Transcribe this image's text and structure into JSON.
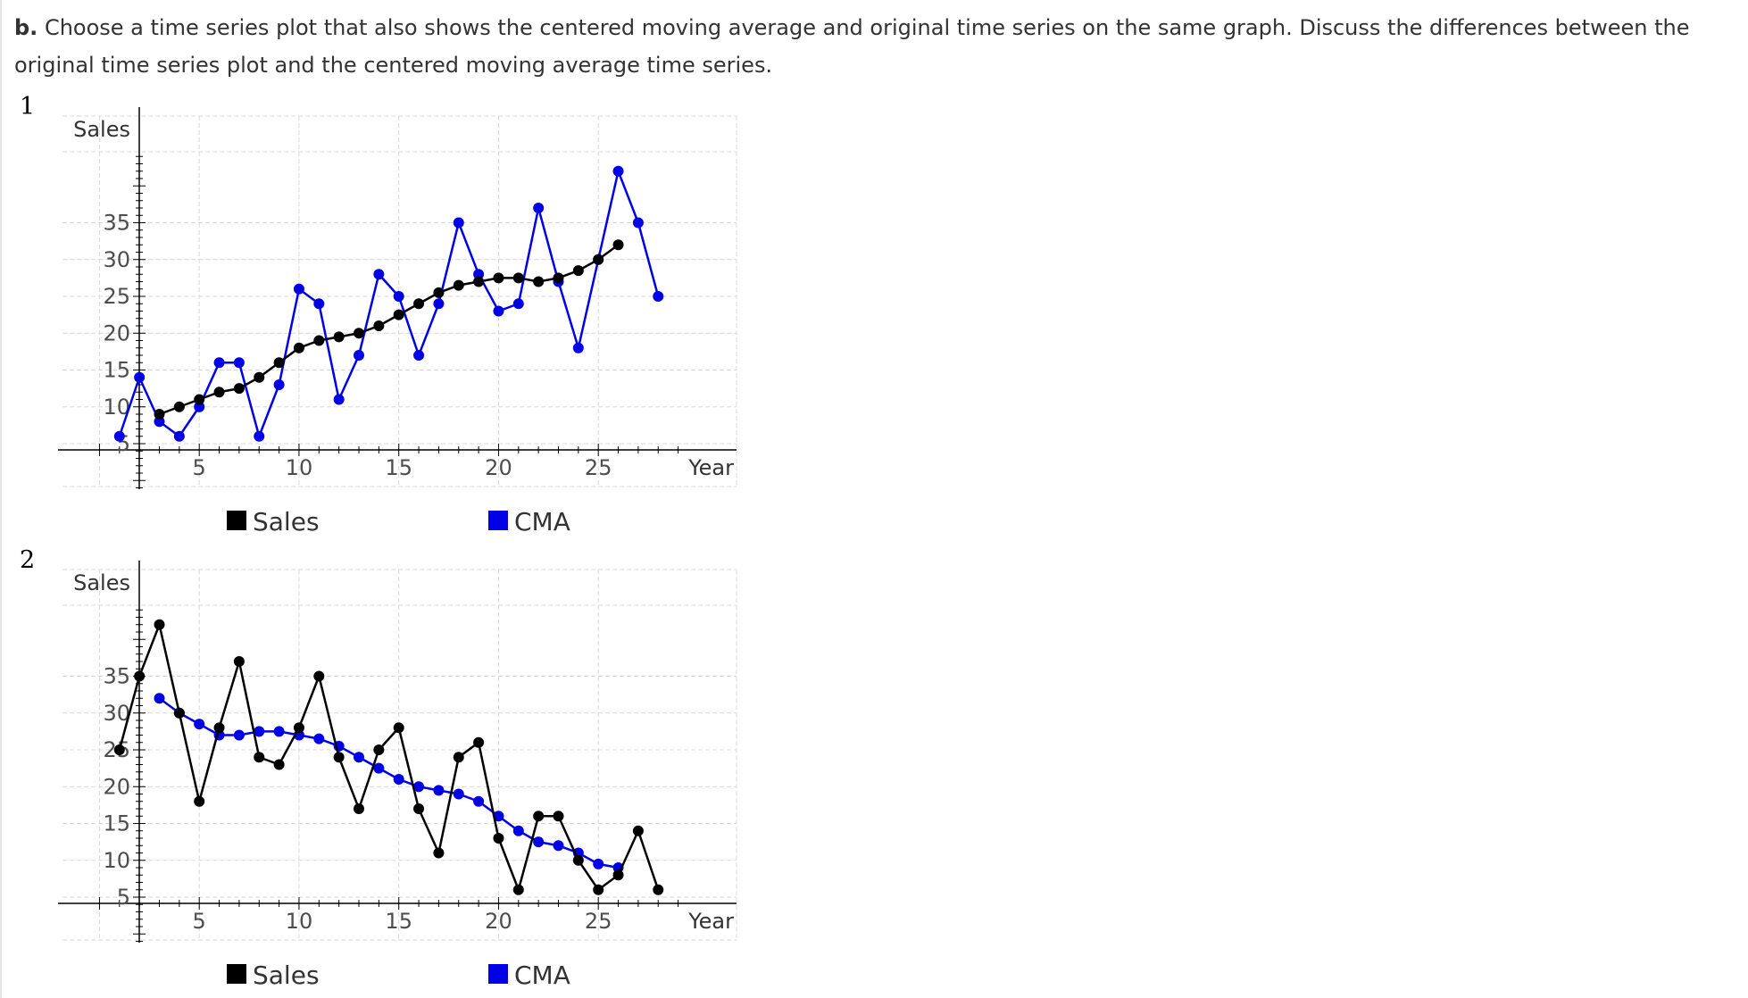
{
  "question": {
    "part_label": "b.",
    "text": "Choose a time series plot that also shows the centered moving average and original time series on the same graph. Discuss the differences between the original time series plot and the centered moving average time series."
  },
  "colors": {
    "sales_black": "#000000",
    "cma_blue": "#0000e6",
    "grid": "#d9d9d9"
  },
  "chart_data": [
    {
      "option": "1",
      "type": "line",
      "xlabel": "Year",
      "ylabel": "Sales",
      "xlim": [
        1,
        29
      ],
      "ylim": [
        1,
        42
      ],
      "x_ticks": [
        5,
        10,
        15,
        20,
        25
      ],
      "y_ticks": [
        5,
        10,
        15,
        20,
        25,
        30,
        35
      ],
      "grid": true,
      "legend": [
        "Sales",
        "CMA"
      ],
      "legend_position": "bottom",
      "series": [
        {
          "legend_name": "CMA",
          "color": "#0000e6",
          "x": [
            1,
            2,
            3,
            4,
            5,
            6,
            7,
            8,
            9,
            10,
            11,
            12,
            13,
            14,
            15,
            16,
            17,
            18,
            19,
            20,
            21,
            22,
            23,
            24,
            25,
            26,
            27,
            28
          ],
          "y": [
            6,
            14,
            8,
            6,
            10,
            16,
            16,
            6,
            13,
            26,
            24,
            11,
            17,
            28,
            25,
            17,
            24,
            35,
            28,
            23,
            24,
            37,
            27,
            18,
            30,
            42,
            35,
            25
          ]
        },
        {
          "legend_name": "Sales",
          "color": "#000000",
          "x": [
            3,
            4,
            5,
            6,
            7,
            8,
            9,
            10,
            11,
            12,
            13,
            14,
            15,
            16,
            17,
            18,
            19,
            20,
            21,
            22,
            23,
            24,
            25,
            26
          ],
          "y": [
            9,
            10,
            11,
            12,
            12.5,
            14,
            16,
            18,
            19,
            19.5,
            20,
            21,
            22.5,
            24,
            25.5,
            26.5,
            27,
            27.5,
            27.5,
            27,
            27.5,
            28.5,
            30,
            32
          ]
        }
      ]
    },
    {
      "option": "2",
      "type": "line",
      "xlabel": "Year",
      "ylabel": "Sales",
      "xlim": [
        1,
        29
      ],
      "ylim": [
        1,
        42
      ],
      "x_ticks": [
        5,
        10,
        15,
        20,
        25
      ],
      "y_ticks": [
        5,
        10,
        15,
        20,
        25,
        30,
        35
      ],
      "grid": true,
      "legend": [
        "Sales",
        "CMA"
      ],
      "legend_position": "bottom",
      "series": [
        {
          "legend_name": "CMA",
          "color": "#0000e6",
          "x": [
            3,
            4,
            5,
            6,
            7,
            8,
            9,
            10,
            11,
            12,
            13,
            14,
            15,
            16,
            17,
            18,
            19,
            20,
            21,
            22,
            23,
            24,
            25,
            26
          ],
          "y": [
            32,
            30,
            28.5,
            27,
            27,
            27.5,
            27.5,
            27,
            26.5,
            25.5,
            24,
            22.5,
            21,
            20,
            19.5,
            19,
            18,
            16,
            14,
            12.5,
            12,
            11,
            9.5,
            9
          ]
        },
        {
          "legend_name": "Sales",
          "color": "#000000",
          "x": [
            1,
            2,
            3,
            4,
            5,
            6,
            7,
            8,
            9,
            10,
            11,
            12,
            13,
            14,
            15,
            16,
            17,
            18,
            19,
            20,
            21,
            22,
            23,
            24,
            25,
            26,
            27,
            28
          ],
          "y": [
            25,
            35,
            42,
            30,
            18,
            28,
            37,
            24,
            23,
            28,
            35,
            24,
            17,
            25,
            28,
            17,
            11,
            24,
            26,
            13,
            6,
            16,
            16,
            10,
            6,
            8,
            14,
            6
          ]
        }
      ]
    }
  ]
}
